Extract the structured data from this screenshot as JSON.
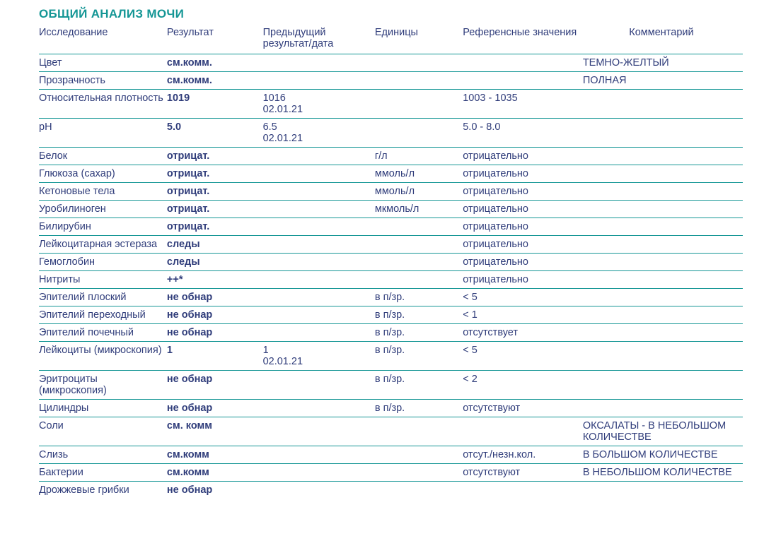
{
  "colors": {
    "title": "#149695",
    "header": "#2f3c7a",
    "name": "#2f3c7a",
    "result": "#2f3c7a",
    "body": "#2f3c7a",
    "comment": "#2f3c7a",
    "rule": "#149695",
    "head_rule": "#149695"
  },
  "title": "ОБЩИЙ АНАЛИЗ МОЧИ",
  "columns": {
    "c1": "Исследование",
    "c2": "Результат",
    "c3": "Предыдущий результат/дата",
    "c4": "Единицы",
    "c5": "Референсные значения",
    "c6": "Комментарий"
  },
  "rows": [
    {
      "name": "Цвет",
      "result": "см.комм.",
      "prev": "",
      "units": "",
      "ref": "",
      "comment": "ТЕМНО-ЖЕЛТЫЙ"
    },
    {
      "name": "Прозрачность",
      "result": "см.комм.",
      "prev": "",
      "units": "",
      "ref": "",
      "comment": "ПОЛНАЯ"
    },
    {
      "name": "Относительная плотность",
      "result": "1019",
      "prev": "1016\n02.01.21",
      "units": "",
      "ref": "1003 - 1035",
      "comment": ""
    },
    {
      "name": "pH",
      "result": "5.0",
      "prev": "6.5\n02.01.21",
      "units": "",
      "ref": "5.0 - 8.0",
      "comment": ""
    },
    {
      "name": "Белок",
      "result": "отрицат.",
      "prev": "",
      "units": "г/л",
      "ref": "отрицательно",
      "comment": ""
    },
    {
      "name": "Глюкоза (сахар)",
      "result": "отрицат.",
      "prev": "",
      "units": "ммоль/л",
      "ref": "отрицательно",
      "comment": ""
    },
    {
      "name": "Кетоновые тела",
      "result": "отрицат.",
      "prev": "",
      "units": "ммоль/л",
      "ref": "отрицательно",
      "comment": ""
    },
    {
      "name": "Уробилиноген",
      "result": "отрицат.",
      "prev": "",
      "units": "мкмоль/л",
      "ref": "отрицательно",
      "comment": ""
    },
    {
      "name": "Билирубин",
      "result": "отрицат.",
      "prev": "",
      "units": "",
      "ref": "отрицательно",
      "comment": ""
    },
    {
      "name": "Лейкоцитарная эстераза",
      "result": "следы",
      "prev": "",
      "units": "",
      "ref": "отрицательно",
      "comment": ""
    },
    {
      "name": "Гемоглобин",
      "result": "следы",
      "prev": "",
      "units": "",
      "ref": "отрицательно",
      "comment": ""
    },
    {
      "name": "Нитриты",
      "result": "++*",
      "prev": "",
      "units": "",
      "ref": "отрицательно",
      "comment": ""
    },
    {
      "name": "Эпителий плоский",
      "result": "не обнар",
      "prev": "",
      "units": "в п/зр.",
      "ref": "< 5",
      "comment": ""
    },
    {
      "name": "Эпителий переходный",
      "result": "не обнар",
      "prev": "",
      "units": "в п/зр.",
      "ref": "< 1",
      "comment": ""
    },
    {
      "name": "Эпителий почечный",
      "result": "не обнар",
      "prev": "",
      "units": "в п/зр.",
      "ref": "отсутствует",
      "comment": ""
    },
    {
      "name": "Лейкоциты (микроскопия)",
      "result": "1",
      "prev": "1\n02.01.21",
      "units": "в п/зр.",
      "ref": "< 5",
      "comment": ""
    },
    {
      "name": "Эритроциты (микроскопия)",
      "result": "не обнар",
      "prev": "",
      "units": "в п/зр.",
      "ref": "< 2",
      "comment": ""
    },
    {
      "name": "Цилиндры",
      "result": "не обнар",
      "prev": "",
      "units": "в п/зр.",
      "ref": "отсутствуют",
      "comment": ""
    },
    {
      "name": "Соли",
      "result": "см. комм",
      "prev": "",
      "units": "",
      "ref": "",
      "comment": "ОКСАЛАТЫ - В НЕБОЛЬШОМ КОЛИЧЕСТВЕ"
    },
    {
      "name": "Слизь",
      "result": "см.комм",
      "prev": "",
      "units": "",
      "ref": "отсут./незн.кол.",
      "comment": "В БОЛЬШОМ КОЛИЧЕСТВЕ"
    },
    {
      "name": "Бактерии",
      "result": "см.комм",
      "prev": "",
      "units": "",
      "ref": "отсутствуют",
      "comment": "В НЕБОЛЬШОМ КОЛИЧЕСТВЕ"
    },
    {
      "name": "Дрожжевые грибки",
      "result": "не обнар",
      "prev": "",
      "units": "",
      "ref": "",
      "comment": ""
    }
  ]
}
